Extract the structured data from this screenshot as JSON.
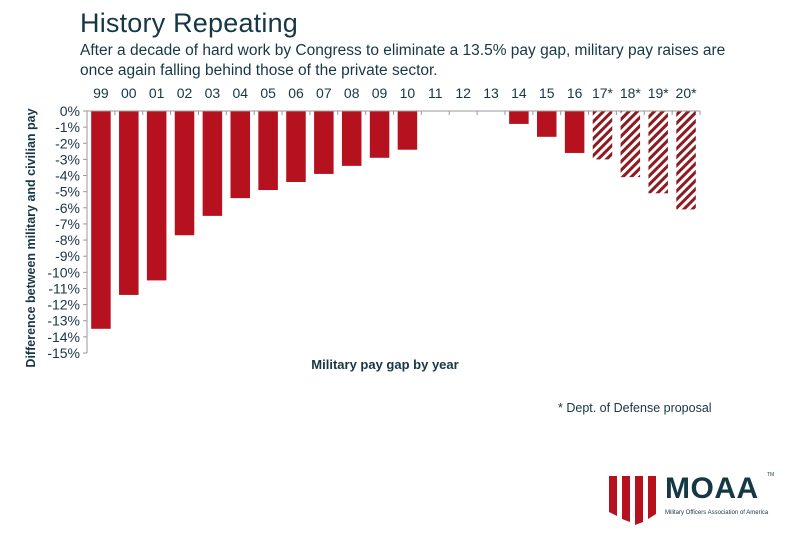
{
  "header": {
    "title": "History Repeating",
    "subtitle": "After a decade of hard work by Congress to eliminate a 13.5% pay gap, military pay raises are once again falling behind those of the private sector."
  },
  "footnote": "* Dept. of Defense proposal",
  "logo": {
    "name": "MOAA",
    "tm": "TM",
    "tagline": "Military Officers Association of America"
  },
  "colors": {
    "bar": "#b5111e",
    "text": "#163744",
    "axis": "#9a9a9a"
  },
  "chart_data": {
    "type": "bar",
    "title": "History Repeating",
    "xlabel": "Military pay gap by year",
    "ylabel": "Difference between military and civilian pay",
    "ylim": [
      -15,
      0
    ],
    "yticks": [
      "0%",
      "-1%",
      "-2%",
      "-3%",
      "-4%",
      "-5%",
      "-6%",
      "-7%",
      "-8%",
      "-9%",
      "-10%",
      "-11%",
      "-12%",
      "-13%",
      "-14%",
      "-15%"
    ],
    "categories": [
      "99",
      "00",
      "01",
      "02",
      "03",
      "04",
      "05",
      "06",
      "07",
      "08",
      "09",
      "10",
      "11",
      "12",
      "13",
      "14",
      "15",
      "16",
      "17*",
      "18*",
      "19*",
      "20*"
    ],
    "values": [
      -13.5,
      -11.4,
      -10.5,
      -7.7,
      -6.5,
      -5.4,
      -4.9,
      -4.4,
      -3.9,
      -3.4,
      -2.9,
      -2.4,
      0,
      0,
      0,
      -0.8,
      -1.6,
      -2.6,
      -3.0,
      -4.1,
      -5.1,
      -6.1
    ],
    "projected": [
      false,
      false,
      false,
      false,
      false,
      false,
      false,
      false,
      false,
      false,
      false,
      false,
      false,
      false,
      false,
      false,
      false,
      false,
      true,
      true,
      true,
      true
    ],
    "legend_note": "* Dept. of Defense proposal",
    "category_axis_position": "top",
    "grid": false
  }
}
